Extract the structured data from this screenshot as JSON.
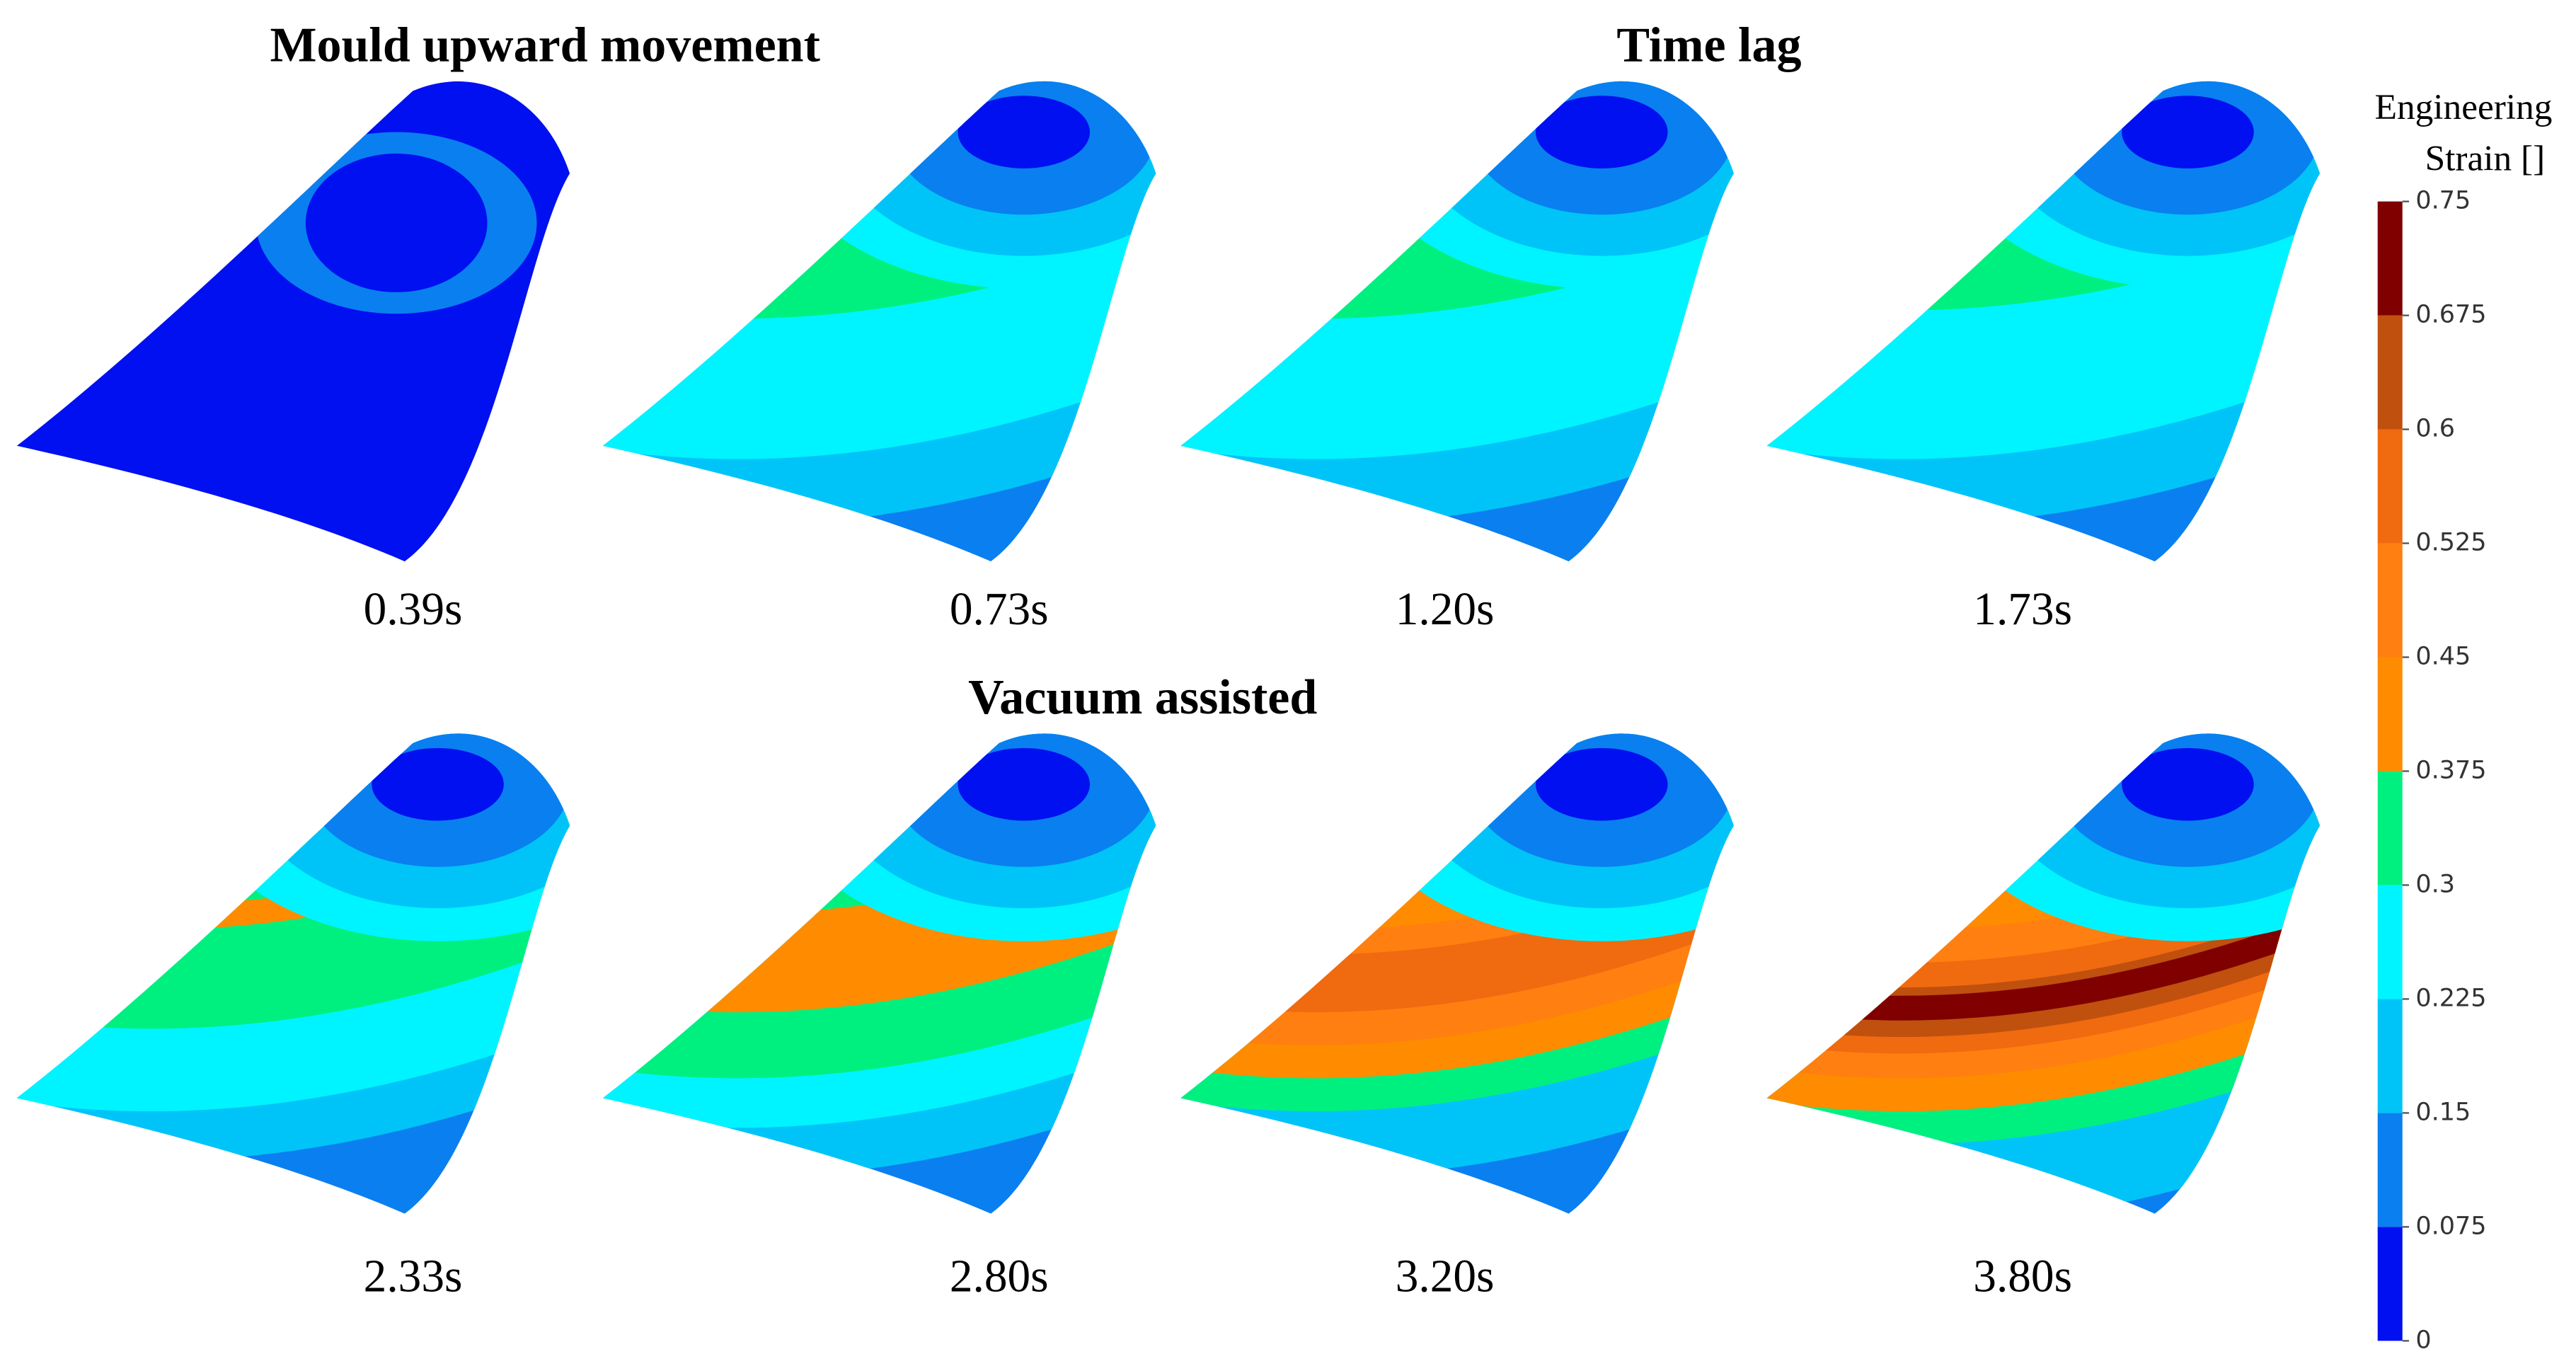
{
  "titles": {
    "mould": "Mould upward movement",
    "time_lag": "Time lag",
    "vacuum": "Vacuum assisted"
  },
  "panels": [
    {
      "time": "0.39s"
    },
    {
      "time": "0.73s"
    },
    {
      "time": "1.20s"
    },
    {
      "time": "1.73s"
    },
    {
      "time": "2.33s"
    },
    {
      "time": "2.80s"
    },
    {
      "time": "3.20s"
    },
    {
      "time": "3.80s"
    }
  ],
  "colorbar": {
    "title": [
      "Engineering",
      "Strain []"
    ],
    "lim": [
      0,
      0.75
    ],
    "ticks": [
      0,
      0.075,
      0.15,
      0.225,
      0.3,
      0.375,
      0.45,
      0.525,
      0.6,
      0.675,
      0.75
    ],
    "colors": [
      "#0010f0",
      "#0a7ff0",
      "#00c4f8",
      "#00f4ff",
      "#00f080",
      "#ff8c00",
      "#ff7f10",
      "#f06a10",
      "#c0500e",
      "#800000"
    ]
  }
}
